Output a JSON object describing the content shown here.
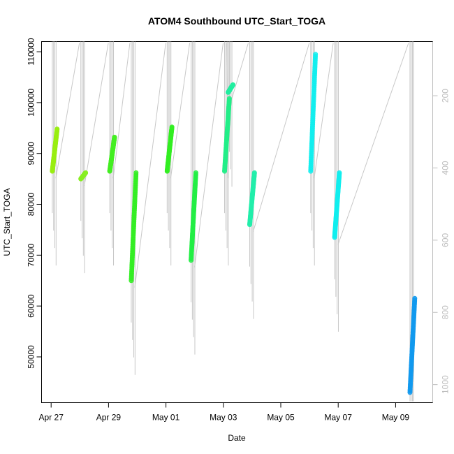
{
  "chart_data": {
    "type": "scatter",
    "title": "ATOM4 Southbound UTC_Start_TOGA",
    "xlabel": "Date",
    "ylabel": "UTC_Start_TOGA",
    "x_ticks": [
      "Apr 27",
      "Apr 29",
      "May 01",
      "May 03",
      "May 05",
      "May 07",
      "May 09"
    ],
    "y_ticks": [
      50000,
      60000,
      70000,
      80000,
      90000,
      100000,
      110000
    ],
    "y2_ticks": [
      200,
      400,
      600,
      800,
      1000
    ],
    "xlim": [
      "2016-04-26 16:00",
      "2016-05-10 07:00"
    ],
    "ylim": [
      41000,
      112000
    ],
    "y2lim": [
      1050,
      50
    ],
    "grid": false,
    "series": [
      {
        "color": "#99ee11",
        "points": [
          {
            "x": "2016-04-27 01:00",
            "y_start": 86500,
            "y_end": 94800
          }
        ]
      },
      {
        "color": "#88ee22",
        "points": [
          {
            "x": "2016-04-28 00:50",
            "y_start": 85000,
            "y_end": 86200
          }
        ]
      },
      {
        "color": "#44ee22",
        "points": [
          {
            "x": "2016-04-29 01:00",
            "y_start": 86500,
            "y_end": 93200
          }
        ]
      },
      {
        "color": "#33ee22",
        "points": [
          {
            "x": "2016-04-29 19:00",
            "y_start": 65000,
            "y_end": 86200
          }
        ]
      },
      {
        "color": "#33ee22",
        "points": [
          {
            "x": "2016-05-01 01:00",
            "y_start": 86500,
            "y_end": 95200
          }
        ]
      },
      {
        "color": "#22ee44",
        "points": [
          {
            "x": "2016-05-01 21:00",
            "y_start": 69000,
            "y_end": 86200
          }
        ]
      },
      {
        "color": "#22ee88",
        "points": [
          {
            "x": "2016-05-03 01:00",
            "y_start": 86500,
            "y_end": 100800
          }
        ]
      },
      {
        "color": "#22eea0",
        "points": [
          {
            "x": "2016-05-03 04:00",
            "y_start": 102000,
            "y_end": 103500
          }
        ]
      },
      {
        "color": "#22eeaa",
        "points": [
          {
            "x": "2016-05-03 22:00",
            "y_start": 76000,
            "y_end": 86200
          }
        ]
      },
      {
        "color": "#11eeee",
        "points": [
          {
            "x": "2016-05-06 01:00",
            "y_start": 86500,
            "y_end": 109500
          }
        ]
      },
      {
        "color": "#11eeee",
        "points": [
          {
            "x": "2016-05-06 21:00",
            "y_start": 73500,
            "y_end": 86200
          }
        ]
      },
      {
        "color": "#1199ee",
        "points": [
          {
            "x": "2016-05-09 12:00",
            "y_start": 43000,
            "y_end": 61500
          }
        ]
      }
    ]
  }
}
